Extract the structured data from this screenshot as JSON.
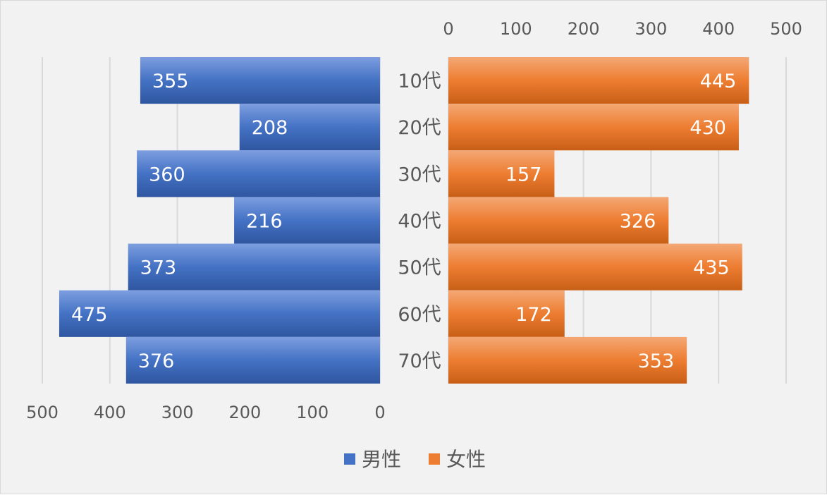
{
  "chart_data": {
    "type": "bar",
    "orientation": "horizontal",
    "layout": "butterfly",
    "categories": [
      "10代",
      "20代",
      "30代",
      "40代",
      "50代",
      "60代",
      "70代"
    ],
    "series": [
      {
        "name": "男性",
        "values": [
          355,
          208,
          360,
          216,
          373,
          475,
          376
        ],
        "color": "#4472c4",
        "side": "left"
      },
      {
        "name": "女性",
        "values": [
          445,
          430,
          157,
          326,
          435,
          172,
          353
        ],
        "color": "#ed7d31",
        "side": "right"
      }
    ],
    "xlim": [
      0,
      500
    ],
    "ticks": [
      "0",
      "100",
      "200",
      "300",
      "400",
      "500"
    ],
    "left_axis_position": "bottom",
    "right_axis_position": "top",
    "grid": true,
    "data_labels": true,
    "legend_position": "bottom"
  }
}
